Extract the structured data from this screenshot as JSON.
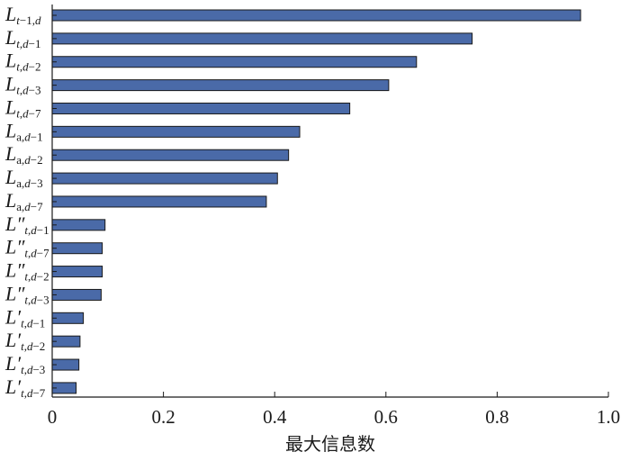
{
  "chart_data": {
    "type": "bar",
    "orientation": "horizontal",
    "title": "",
    "xlabel": "最大信息数",
    "ylabel": "",
    "xlim": [
      0,
      1.0
    ],
    "xticks": [
      "0",
      "0.2",
      "0.4",
      "0.6",
      "0.8",
      "1.0"
    ],
    "grid": false,
    "legend": "none",
    "bar_color": "#4a6aa8",
    "bar_edge_color": "#1a1a1a",
    "categories": [
      {
        "label": "Lt−1,d",
        "main": "L",
        "prime": "",
        "sub": [
          {
            "t": "t",
            "i": true
          },
          {
            "t": "−1,",
            "i": false
          },
          {
            "t": "d",
            "i": true
          }
        ]
      },
      {
        "label": "Lt,d−1",
        "main": "L",
        "prime": "",
        "sub": [
          {
            "t": "t",
            "i": true
          },
          {
            "t": ",",
            "i": false
          },
          {
            "t": "d",
            "i": true
          },
          {
            "t": "−1",
            "i": false
          }
        ]
      },
      {
        "label": "Lt,d−2",
        "main": "L",
        "prime": "",
        "sub": [
          {
            "t": "t",
            "i": true
          },
          {
            "t": ",",
            "i": false
          },
          {
            "t": "d",
            "i": true
          },
          {
            "t": "−2",
            "i": false
          }
        ]
      },
      {
        "label": "Lt,d−3",
        "main": "L",
        "prime": "",
        "sub": [
          {
            "t": "t",
            "i": true
          },
          {
            "t": ",",
            "i": false
          },
          {
            "t": "d",
            "i": true
          },
          {
            "t": "−3",
            "i": false
          }
        ]
      },
      {
        "label": "Lt,d−7",
        "main": "L",
        "prime": "",
        "sub": [
          {
            "t": "t",
            "i": true
          },
          {
            "t": ",",
            "i": false
          },
          {
            "t": "d",
            "i": true
          },
          {
            "t": "−7",
            "i": false
          }
        ]
      },
      {
        "label": "La,d−1",
        "main": "L",
        "prime": "",
        "sub": [
          {
            "t": "a,",
            "i": false
          },
          {
            "t": "d",
            "i": true
          },
          {
            "t": "−1",
            "i": false
          }
        ]
      },
      {
        "label": "La,d−2",
        "main": "L",
        "prime": "",
        "sub": [
          {
            "t": "a,",
            "i": false
          },
          {
            "t": "d",
            "i": true
          },
          {
            "t": "−2",
            "i": false
          }
        ]
      },
      {
        "label": "La,d−3",
        "main": "L",
        "prime": "",
        "sub": [
          {
            "t": "a,",
            "i": false
          },
          {
            "t": "d",
            "i": true
          },
          {
            "t": "−3",
            "i": false
          }
        ]
      },
      {
        "label": "La,d−7",
        "main": "L",
        "prime": "",
        "sub": [
          {
            "t": "a,",
            "i": false
          },
          {
            "t": "d",
            "i": true
          },
          {
            "t": "−7",
            "i": false
          }
        ]
      },
      {
        "label": "L″t,d−1",
        "main": "L",
        "prime": "″",
        "sub": [
          {
            "t": "t",
            "i": true
          },
          {
            "t": ",",
            "i": false
          },
          {
            "t": "d",
            "i": true
          },
          {
            "t": "−1",
            "i": false
          }
        ]
      },
      {
        "label": "L″t,d−7",
        "main": "L",
        "prime": "″",
        "sub": [
          {
            "t": "t",
            "i": true
          },
          {
            "t": ",",
            "i": false
          },
          {
            "t": "d",
            "i": true
          },
          {
            "t": "−7",
            "i": false
          }
        ]
      },
      {
        "label": "L″t,d−2",
        "main": "L",
        "prime": "″",
        "sub": [
          {
            "t": "t",
            "i": true
          },
          {
            "t": ",",
            "i": false
          },
          {
            "t": "d",
            "i": true
          },
          {
            "t": "−2",
            "i": false
          }
        ]
      },
      {
        "label": "L″t,d−3",
        "main": "L",
        "prime": "″",
        "sub": [
          {
            "t": "t",
            "i": true
          },
          {
            "t": ",",
            "i": false
          },
          {
            "t": "d",
            "i": true
          },
          {
            "t": "−3",
            "i": false
          }
        ]
      },
      {
        "label": "L′t,d−1",
        "main": "L",
        "prime": "′",
        "sub": [
          {
            "t": "t",
            "i": true
          },
          {
            "t": ",",
            "i": false
          },
          {
            "t": "d",
            "i": true
          },
          {
            "t": "−1",
            "i": false
          }
        ]
      },
      {
        "label": "L′t,d−2",
        "main": "L",
        "prime": "′",
        "sub": [
          {
            "t": "t",
            "i": true
          },
          {
            "t": ",",
            "i": false
          },
          {
            "t": "d",
            "i": true
          },
          {
            "t": "−2",
            "i": false
          }
        ]
      },
      {
        "label": "L′t,d−3",
        "main": "L",
        "prime": "′",
        "sub": [
          {
            "t": "t",
            "i": true
          },
          {
            "t": ",",
            "i": false
          },
          {
            "t": "d",
            "i": true
          },
          {
            "t": "−3",
            "i": false
          }
        ]
      },
      {
        "label": "L′t,d−7",
        "main": "L",
        "prime": "′",
        "sub": [
          {
            "t": "t",
            "i": true
          },
          {
            "t": ",",
            "i": false
          },
          {
            "t": "d",
            "i": true
          },
          {
            "t": "−7",
            "i": false
          }
        ]
      }
    ],
    "values": [
      0.95,
      0.755,
      0.655,
      0.605,
      0.535,
      0.445,
      0.425,
      0.405,
      0.385,
      0.095,
      0.09,
      0.09,
      0.088,
      0.056,
      0.05,
      0.048,
      0.043
    ]
  }
}
